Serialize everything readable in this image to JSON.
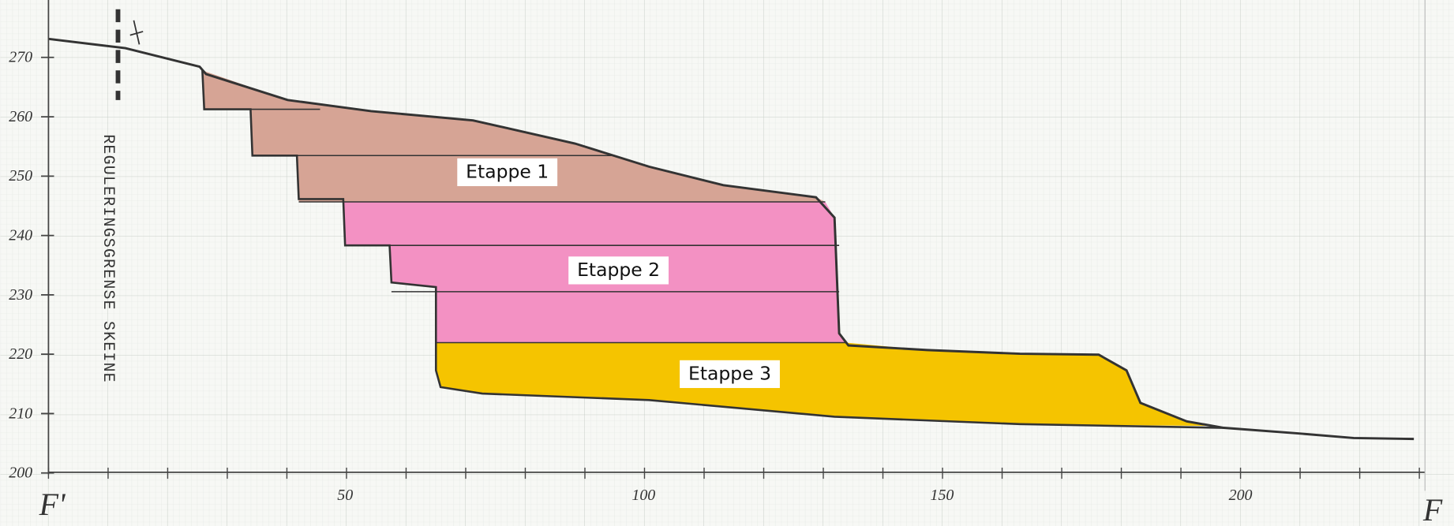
{
  "y_axis": {
    "labels": [
      "270",
      "260",
      "250",
      "240",
      "230",
      "220",
      "210",
      "200"
    ]
  },
  "x_axis": {
    "labels": [
      "50",
      "100",
      "150",
      "200"
    ],
    "start": "F'",
    "end": "F"
  },
  "boundary_label": "REGULERINGSGRENSE SKEINE",
  "stages": [
    "Etappe 1",
    "Etappe 2",
    "Etappe 3"
  ]
}
